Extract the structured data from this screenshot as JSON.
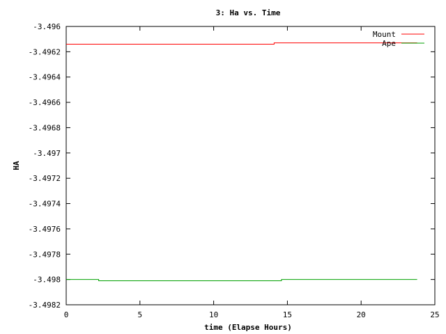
{
  "chart_data": {
    "type": "line",
    "title": "3: Ha vs. Time",
    "xlabel": "time (Elapse Hours)",
    "ylabel": "HA",
    "xlim": [
      0,
      25
    ],
    "ylim": [
      -3.4982,
      -3.496
    ],
    "xticks": [
      0,
      5,
      10,
      15,
      20,
      25
    ],
    "xtick_labels": [
      "0",
      "5",
      "10",
      "15",
      "20",
      "25"
    ],
    "yticks": [
      -3.496,
      -3.4962,
      -3.4964,
      -3.4966,
      -3.4968,
      -3.497,
      -3.4972,
      -3.4974,
      -3.4976,
      -3.4978,
      -3.498,
      -3.4982
    ],
    "ytick_labels": [
      "-3.496",
      "-3.4962",
      "-3.4964",
      "-3.4966",
      "-3.4968",
      "-3.497",
      "-3.4972",
      "-3.4974",
      "-3.4976",
      "-3.4978",
      "-3.498",
      "-3.4982"
    ],
    "grid": false,
    "legend_position": "top-right",
    "series": [
      {
        "name": "Mount",
        "color": "#ff0000",
        "points": [
          [
            0,
            -3.49614
          ],
          [
            14.1,
            -3.49614
          ],
          [
            14.1,
            -3.49613
          ],
          [
            23.8,
            -3.49613
          ]
        ]
      },
      {
        "name": "Ape",
        "color": "#00a000",
        "points": [
          [
            0,
            -3.498
          ],
          [
            2.2,
            -3.498
          ],
          [
            2.2,
            -3.49801
          ],
          [
            14.6,
            -3.49801
          ],
          [
            14.6,
            -3.498
          ],
          [
            23.8,
            -3.498
          ]
        ]
      }
    ]
  }
}
